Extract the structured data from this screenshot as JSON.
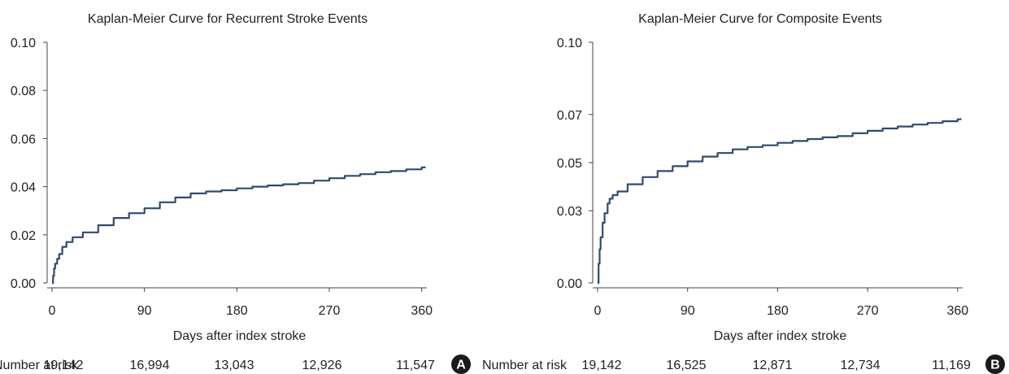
{
  "panels": [
    {
      "chart_data": {
        "type": "line",
        "title": "Kaplan-Meier Curve for Recurrent Stroke Events",
        "xlabel": "Days after index stroke",
        "ylabel": "",
        "xlim": [
          0,
          365
        ],
        "ylim": [
          0,
          0.1
        ],
        "xticks": [
          0,
          90,
          180,
          270,
          360
        ],
        "xtick_labels": [
          "0",
          "90",
          "180",
          "270",
          "360"
        ],
        "yticks": [
          0,
          0.02,
          0.04,
          0.06,
          0.08,
          0.1
        ],
        "ytick_labels": [
          "0.00",
          "0.02",
          "0.04",
          "0.06",
          "0.08",
          "0.10"
        ],
        "grid": false,
        "series": [
          {
            "color": "#2f4b6e",
            "x": [
              0,
              1,
              2,
              3,
              5,
              7,
              10,
              14,
              20,
              30,
              45,
              60,
              75,
              90,
              105,
              120,
              135,
              150,
              165,
              180,
              195,
              210,
              225,
              240,
              255,
              270,
              285,
              300,
              315,
              330,
              345,
              360,
              363
            ],
            "y": [
              0,
              0.003,
              0.006,
              0.008,
              0.01,
              0.012,
              0.015,
              0.017,
              0.019,
              0.021,
              0.024,
              0.027,
              0.029,
              0.031,
              0.0335,
              0.0355,
              0.0372,
              0.038,
              0.0385,
              0.0393,
              0.04,
              0.0405,
              0.041,
              0.0415,
              0.0425,
              0.0435,
              0.0445,
              0.0452,
              0.046,
              0.0465,
              0.0472,
              0.048,
              0.0484
            ]
          }
        ],
        "risk_table": {
          "label": "Number at risk",
          "values": [
            "19,142",
            "16,994",
            "13,043",
            "12,926",
            "11,547"
          ]
        },
        "panel_label": "A"
      }
    },
    {
      "chart_data": {
        "type": "line",
        "title": "Kaplan-Meier Curve for Composite Events",
        "xlabel": "Days after index stroke",
        "ylabel": "",
        "xlim": [
          0,
          365
        ],
        "ylim": [
          0,
          0.1
        ],
        "xticks": [
          0,
          90,
          180,
          270,
          360
        ],
        "xtick_labels": [
          "0",
          "90",
          "180",
          "270",
          "360"
        ],
        "yticks": [
          0,
          0.03,
          0.05,
          0.07,
          0.1
        ],
        "ytick_labels": [
          "0.00",
          "0.03",
          "0.05",
          "0.07",
          "0.10"
        ],
        "grid": false,
        "series": [
          {
            "color": "#2f4b6e",
            "x": [
              0,
              1,
              2,
              3,
              5,
              7,
              10,
              12,
              15,
              20,
              30,
              45,
              60,
              75,
              90,
              105,
              120,
              135,
              150,
              165,
              180,
              195,
              210,
              225,
              240,
              255,
              270,
              285,
              300,
              315,
              330,
              345,
              360,
              363
            ],
            "y": [
              0,
              0.008,
              0.014,
              0.019,
              0.025,
              0.029,
              0.033,
              0.035,
              0.0365,
              0.038,
              0.041,
              0.044,
              0.0465,
              0.0485,
              0.0505,
              0.0525,
              0.054,
              0.0555,
              0.0565,
              0.0572,
              0.0582,
              0.059,
              0.0598,
              0.0605,
              0.061,
              0.0622,
              0.0632,
              0.0642,
              0.065,
              0.0658,
              0.0665,
              0.0672,
              0.068,
              0.0684
            ]
          }
        ],
        "risk_table": {
          "label": "Number at risk",
          "values": [
            "19,142",
            "16,525",
            "12,871",
            "12,734",
            "11,169"
          ]
        },
        "panel_label": "B"
      }
    }
  ]
}
